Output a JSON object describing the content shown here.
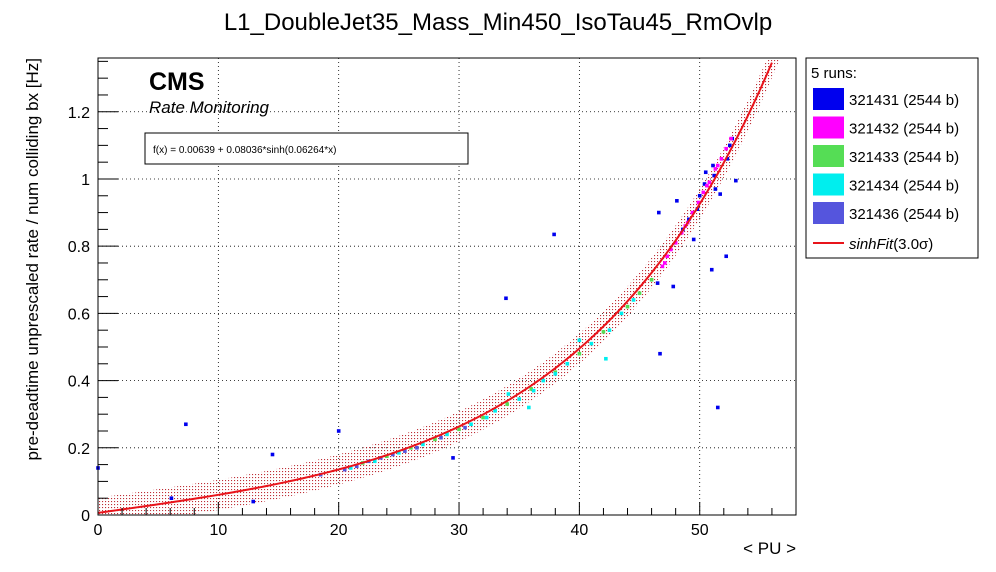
{
  "chart_data": {
    "type": "scatter",
    "title": "L1_DoubleJet35_Mass_Min450_IsoTau45_RmOvlp",
    "xlabel": "< PU >",
    "ylabel": "pre-deadtime unprescaled rate / num colliding bx [Hz]",
    "xlim": [
      0,
      58
    ],
    "ylim": [
      0,
      1.36
    ],
    "xticks": [
      0,
      10,
      20,
      30,
      40,
      50
    ],
    "yticks": [
      0,
      0.2,
      0.4,
      0.6,
      0.8,
      1,
      1.2
    ],
    "xtick_labels": [
      "0",
      "10",
      "20",
      "30",
      "40",
      "50"
    ],
    "ytick_labels": [
      "0",
      "0.2",
      "0.4",
      "0.6",
      "0.8",
      "1",
      "1.2"
    ],
    "grid": true,
    "legend_position": "right-outside",
    "watermark": {
      "main": "CMS",
      "sub": "Rate Monitoring"
    },
    "fit_text": "f(x) = 0.00639 + 0.08036*sinh(0.06264*x)",
    "fit": {
      "a": 0.00639,
      "b": 0.08036,
      "c": 0.06264,
      "band_sigma": 3.0,
      "band_halfwidth": 0.045,
      "color": "#e8141b",
      "band_color": "#b40a14"
    },
    "legend_header": "5 runs:",
    "legend_fit_label_prefix": "sinhFit",
    "legend_fit_label_suffix": "(3.0σ)",
    "series": [
      {
        "name": "321431 (2544 b)",
        "color": "#0000ee",
        "points": [
          [
            0,
            0.14
          ],
          [
            7.3,
            0.27
          ],
          [
            14.5,
            0.18
          ],
          [
            20,
            0.25
          ],
          [
            29.5,
            0.17
          ],
          [
            33.9,
            0.645
          ],
          [
            37.9,
            0.835
          ],
          [
            12.9,
            0.04
          ],
          [
            6.1,
            0.05
          ],
          [
            46.5,
            0.69
          ],
          [
            46.6,
            0.9
          ],
          [
            46.7,
            0.48
          ],
          [
            47.8,
            0.68
          ],
          [
            48.1,
            0.935
          ],
          [
            49.5,
            0.82
          ],
          [
            50,
            0.95
          ],
          [
            50.4,
            0.985
          ],
          [
            51,
            0.73
          ],
          [
            51.2,
            1.01
          ],
          [
            51.3,
            0.97
          ],
          [
            51.5,
            0.32
          ],
          [
            51.7,
            0.955
          ],
          [
            52.2,
            0.77
          ],
          [
            52.3,
            1.06
          ],
          [
            52.5,
            1.1
          ],
          [
            52.7,
            1.12
          ],
          [
            53,
            0.995
          ],
          [
            48.6,
            0.85
          ],
          [
            49.1,
            0.88
          ],
          [
            49.8,
            0.91
          ],
          [
            50.5,
            1.02
          ],
          [
            51.1,
            1.04
          ]
        ]
      },
      {
        "name": "321432 (2544 b)",
        "color": "#ff00ff",
        "points": [
          [
            46.9,
            0.74
          ],
          [
            47.3,
            0.77
          ],
          [
            47.6,
            0.79
          ],
          [
            48,
            0.81
          ],
          [
            48.5,
            0.84
          ],
          [
            49,
            0.87
          ],
          [
            49.4,
            0.9
          ],
          [
            49.9,
            0.93
          ],
          [
            50.3,
            0.96
          ],
          [
            50.8,
            0.99
          ],
          [
            51.3,
            1.03
          ],
          [
            51.8,
            1.06
          ],
          [
            52.2,
            1.09
          ],
          [
            52.6,
            1.12
          ],
          [
            47.1,
            0.75
          ],
          [
            48.8,
            0.86
          ],
          [
            50.6,
            0.98
          ],
          [
            51.5,
            1.04
          ]
        ]
      },
      {
        "name": "321433 (2544 b)",
        "color": "#55dd55",
        "points": [
          [
            22,
            0.155
          ],
          [
            24,
            0.175
          ],
          [
            26,
            0.2
          ],
          [
            28,
            0.225
          ],
          [
            30,
            0.255
          ],
          [
            32,
            0.29
          ],
          [
            34,
            0.33
          ],
          [
            36,
            0.375
          ],
          [
            38,
            0.425
          ],
          [
            40,
            0.48
          ],
          [
            42,
            0.545
          ],
          [
            44,
            0.62
          ],
          [
            45,
            0.66
          ],
          [
            46,
            0.7
          ]
        ]
      },
      {
        "name": "321434 (2544 b)",
        "color": "#00eeee",
        "points": [
          [
            21,
            0.14
          ],
          [
            23,
            0.16
          ],
          [
            25,
            0.185
          ],
          [
            27,
            0.21
          ],
          [
            29,
            0.24
          ],
          [
            31,
            0.27
          ],
          [
            32.3,
            0.29
          ],
          [
            33,
            0.31
          ],
          [
            34.1,
            0.36
          ],
          [
            35,
            0.345
          ],
          [
            35.8,
            0.32
          ],
          [
            37,
            0.4
          ],
          [
            39,
            0.45
          ],
          [
            40,
            0.52
          ],
          [
            41,
            0.51
          ],
          [
            42.2,
            0.465
          ],
          [
            42.5,
            0.55
          ],
          [
            43.5,
            0.6
          ],
          [
            44.5,
            0.64
          ],
          [
            38,
            0.42
          ],
          [
            36.2,
            0.37
          ]
        ]
      },
      {
        "name": "321436 (2544 b)",
        "color": "#5555dd",
        "points": [
          [
            18.5,
            0.12
          ],
          [
            20.5,
            0.135
          ],
          [
            22.5,
            0.16
          ],
          [
            24.5,
            0.18
          ],
          [
            26.5,
            0.2
          ],
          [
            28.5,
            0.23
          ],
          [
            30.5,
            0.26
          ],
          [
            25.5,
            0.19
          ],
          [
            23.5,
            0.17
          ],
          [
            21.5,
            0.145
          ]
        ]
      }
    ]
  }
}
